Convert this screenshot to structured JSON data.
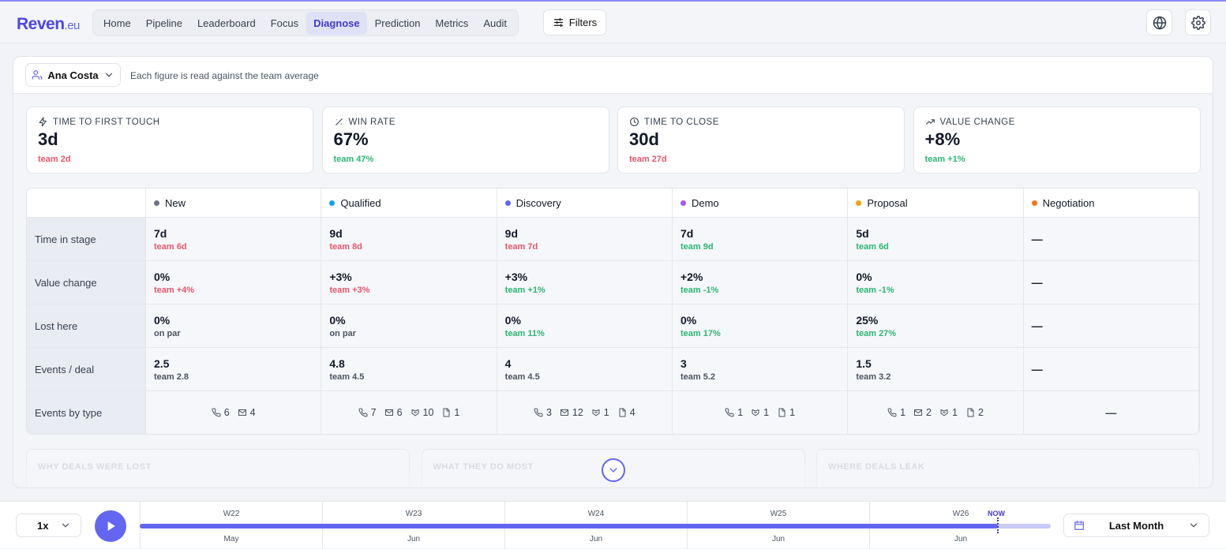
{
  "header": {
    "brand": "Reven",
    "brand_suffix": ".eu",
    "nav": [
      "Home",
      "Pipeline",
      "Leaderboard",
      "Focus",
      "Diagnose",
      "Prediction",
      "Metrics",
      "Audit"
    ],
    "filters": "Filters"
  },
  "toolbar": {
    "person": "Ana Costa",
    "note": "Each figure is read against the team average"
  },
  "kpis": [
    {
      "label": "TIME TO FIRST TOUCH",
      "value": "3d",
      "team": "team 2d",
      "color": "#e5566b"
    },
    {
      "label": "WIN RATE",
      "value": "67%",
      "team": "team 47%",
      "color": "#2bb673"
    },
    {
      "label": "TIME TO CLOSE",
      "value": "30d",
      "team": "team 27d",
      "color": "#e5566b"
    },
    {
      "label": "VALUE CHANGE",
      "value": "+8%",
      "team": "team +1%",
      "color": "#2bb673"
    }
  ],
  "table": {
    "stages": [
      {
        "name": "New",
        "color": "#6b7280"
      },
      {
        "name": "Qualified",
        "color": "#0ea5e9"
      },
      {
        "name": "Discovery",
        "color": "#6366f1"
      },
      {
        "name": "Demo",
        "color": "#a855f7"
      },
      {
        "name": "Proposal",
        "color": "#f59e0b"
      },
      {
        "name": "Negotiation",
        "color": "#f97316"
      }
    ],
    "rows": [
      {
        "label": "Time in stage",
        "cells": [
          {
            "value": "7d",
            "team": "team 6d",
            "color": "#e5566b"
          },
          {
            "value": "9d",
            "team": "team 8d",
            "color": "#e5566b"
          },
          {
            "value": "9d",
            "team": "team 7d",
            "color": "#e5566b"
          },
          {
            "value": "7d",
            "team": "team 9d",
            "color": "#2bb673"
          },
          {
            "value": "5d",
            "team": "team 6d",
            "color": "#2bb673"
          },
          {
            "value": "—"
          }
        ]
      },
      {
        "label": "Value change",
        "cells": [
          {
            "value": "0%",
            "team": "team +4%",
            "color": "#e5566b"
          },
          {
            "value": "+3%",
            "team": "team +3%",
            "color": "#e5566b"
          },
          {
            "value": "+3%",
            "team": "team +1%",
            "color": "#2bb673"
          },
          {
            "value": "+2%",
            "team": "team -1%",
            "color": "#2bb673"
          },
          {
            "value": "0%",
            "team": "team -1%",
            "color": "#2bb673"
          },
          {
            "value": "—"
          }
        ]
      },
      {
        "label": "Lost here",
        "cells": [
          {
            "value": "0%",
            "team": "on par",
            "color": "#4b5563"
          },
          {
            "value": "0%",
            "team": "on par",
            "color": "#4b5563"
          },
          {
            "value": "0%",
            "team": "team 11%",
            "color": "#2bb673"
          },
          {
            "value": "0%",
            "team": "team 17%",
            "color": "#2bb673"
          },
          {
            "value": "25%",
            "team": "team 27%",
            "color": "#2bb673"
          },
          {
            "value": "—"
          }
        ]
      },
      {
        "label": "Events / deal",
        "cells": [
          {
            "value": "2.5",
            "team": "team 2.8",
            "color": "#4b5563"
          },
          {
            "value": "4.8",
            "team": "team 4.5",
            "color": "#4b5563"
          },
          {
            "value": "4",
            "team": "team 4.5",
            "color": "#4b5563"
          },
          {
            "value": "3",
            "team": "team 5.2",
            "color": "#4b5563"
          },
          {
            "value": "1.5",
            "team": "team 3.2",
            "color": "#4b5563"
          },
          {
            "value": "—"
          }
        ]
      },
      {
        "label": "Events by type",
        "cells": [
          [
            6,
            4,
            null,
            null
          ],
          [
            7,
            6,
            10,
            1
          ],
          [
            3,
            12,
            1,
            4
          ],
          [
            1,
            null,
            1,
            1
          ],
          [
            1,
            2,
            1,
            2
          ],
          "—"
        ]
      }
    ]
  },
  "sections": [
    "WHY DEALS WERE LOST",
    "WHAT THEY DO MOST",
    "WHERE DEALS LEAK"
  ],
  "timeline": {
    "speed": "1x",
    "weeks": [
      {
        "label": "W22",
        "month": "May"
      },
      {
        "label": "W23",
        "month": "Jun"
      },
      {
        "label": "W24",
        "month": "Jun"
      },
      {
        "label": "W25",
        "month": "Jun"
      },
      {
        "label": "W26",
        "month": "Jun"
      }
    ],
    "now": "NOW",
    "range": "Last Month"
  }
}
